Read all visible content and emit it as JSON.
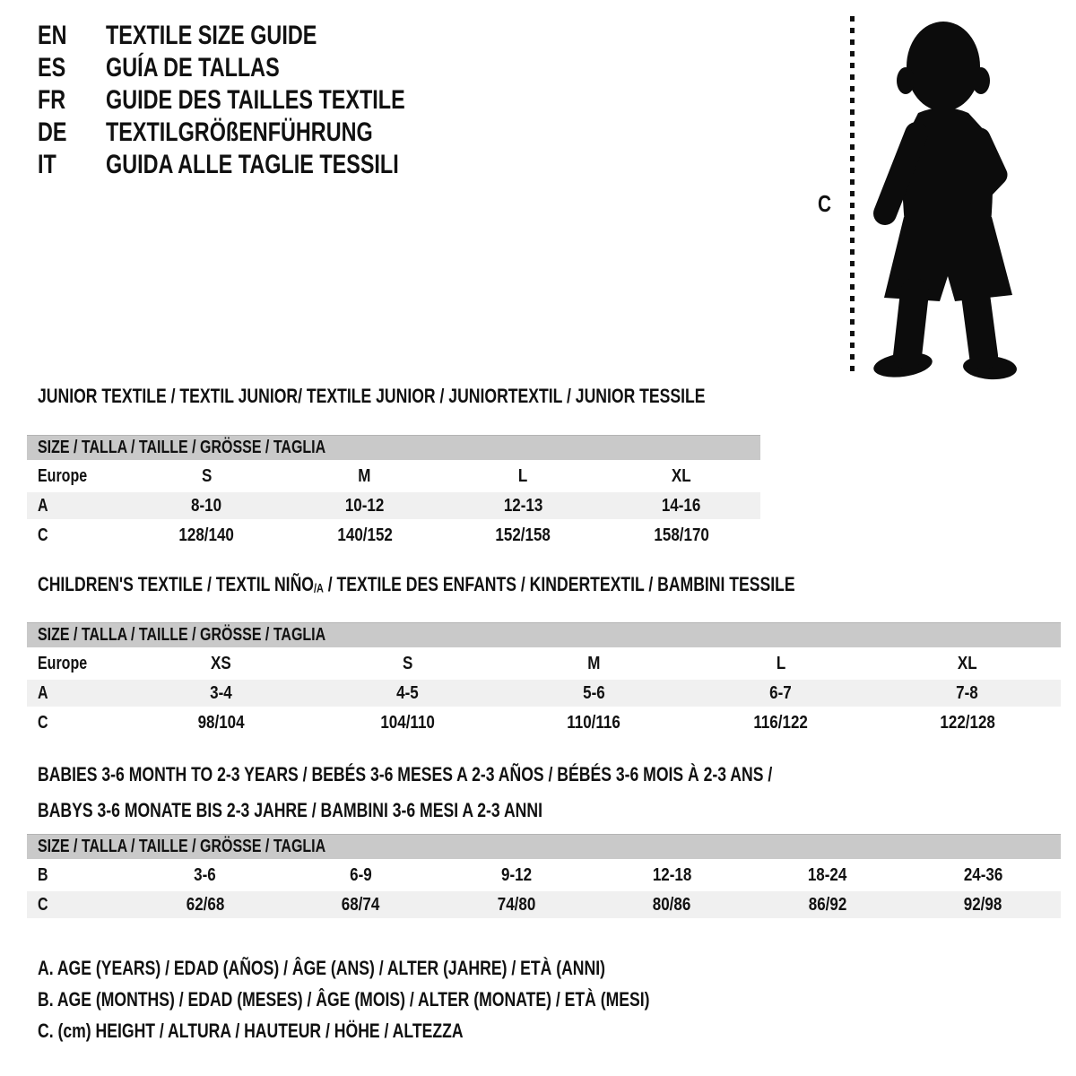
{
  "colors": {
    "page_bg": "#ffffff",
    "ink": "#111111",
    "bar_bg": "#c9c9c9",
    "row_shaded_bg": "#f0f0f0"
  },
  "languages": [
    {
      "code": "EN",
      "title": "TEXTILE SIZE GUIDE"
    },
    {
      "code": "ES",
      "title": "GUÍA DE TALLAS"
    },
    {
      "code": "FR",
      "title": "GUIDE DES TAILLES TEXTILE"
    },
    {
      "code": "DE",
      "title": "TEXTILGRÖßENFÜHRUNG"
    },
    {
      "code": "IT",
      "title": "GUIDA ALLE TAGLIE TESSILI"
    }
  ],
  "figure": {
    "measure_label": "C",
    "silhouette": "toddler-silhouette"
  },
  "sections": [
    {
      "id": "junior",
      "title_main": "JUNIOR TEXTILE / TEXTIL JUNIOR/ TEXTILE JUNIOR / JUNIORTEXTIL / JUNIOR TESSILE",
      "title_sub": "",
      "title_after": "",
      "title_line2": "",
      "size_header": "SIZE / TALLA / TAILLE / GRÖSSE / TAGLIA",
      "region_label": "Europe",
      "columns": [
        "S",
        "M",
        "L",
        "XL"
      ],
      "rows": [
        {
          "label": "A",
          "shaded": true,
          "values": [
            "8-10",
            "10-12",
            "12-13",
            "14-16"
          ]
        },
        {
          "label": "C",
          "shaded": false,
          "values": [
            "128/140",
            "140/152",
            "152/158",
            "158/170"
          ]
        }
      ]
    },
    {
      "id": "children",
      "title_main": "CHILDREN'S TEXTILE / TEXTIL NIÑO",
      "title_sub": "/A",
      "title_after": " / TEXTILE DES ENFANTS / KINDERTEXTIL / BAMBINI TESSILE",
      "title_line2": "",
      "size_header": "SIZE / TALLA / TAILLE / GRÖSSE / TAGLIA",
      "region_label": "Europe",
      "columns": [
        "XS",
        "S",
        "M",
        "L",
        "XL"
      ],
      "rows": [
        {
          "label": "A",
          "shaded": true,
          "values": [
            "3-4",
            "4-5",
            "5-6",
            "6-7",
            "7-8"
          ]
        },
        {
          "label": "C",
          "shaded": false,
          "values": [
            "98/104",
            "104/110",
            "110/116",
            "116/122",
            "122/128"
          ]
        }
      ]
    },
    {
      "id": "babies",
      "title_main": "BABIES 3-6 MONTH TO 2-3 YEARS / BEBÉS 3-6 MESES A 2-3 AÑOS / BÉBÉS 3-6 MOIS À 2-3 ANS /",
      "title_sub": "",
      "title_after": "",
      "title_line2": "BABYS 3-6 MONATE BIS 2-3 JAHRE / BAMBINI 3-6 MESI A 2-3 ANNI",
      "size_header": "SIZE / TALLA / TAILLE / GRÖSSE / TAGLIA",
      "region_label": "",
      "columns": [],
      "rows": [
        {
          "label": "B",
          "shaded": false,
          "values": [
            "3-6",
            "6-9",
            "9-12",
            "12-18",
            "18-24",
            "24-36"
          ]
        },
        {
          "label": "C",
          "shaded": true,
          "values": [
            "62/68",
            "68/74",
            "74/80",
            "80/86",
            "86/92",
            "92/98"
          ]
        }
      ]
    }
  ],
  "notes": [
    "A. AGE (YEARS) / EDAD (AÑOS) / ÂGE (ANS) / ALTER (JAHRE) / ETÀ (ANNI)",
    "B. AGE (MONTHS) / EDAD (MESES) / ÂGE (MOIS) / ALTER (MONATE) / ETÀ (MESI)",
    "C. (cm) HEIGHT / ALTURA / HAUTEUR / HÖHE / ALTEZZA"
  ]
}
